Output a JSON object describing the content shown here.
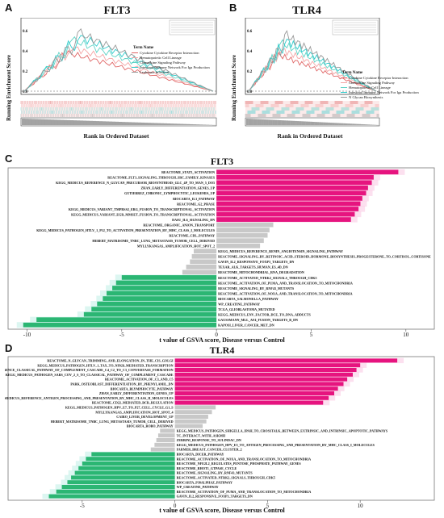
{
  "panelA": {
    "letter": "A",
    "title": "FLT3",
    "ylabel": "Running Enrichment Score",
    "xlabel": "Rank in Ordered Dataset",
    "yticks": [
      "0.6",
      "0.4",
      "0.2",
      "0.0"
    ],
    "legend_title": "Term Name",
    "legend": [
      {
        "name": "Cytokine Cytokine Receptor Interaction",
        "color": "#e06666"
      },
      {
        "name": "Hematopoietic Cell Lineage",
        "color": "#f4a6a6"
      },
      {
        "name": "Chemokine Signaling Pathway",
        "color": "#5fd3c6"
      },
      {
        "name": "Intestinal Immune Network For Iga Production",
        "color": "#33cccc"
      },
      {
        "name": "Leukemia Infection",
        "color": "#999999"
      }
    ],
    "curves": [
      {
        "color": "#e06666",
        "peak": 0.42
      },
      {
        "color": "#f4a6a6",
        "peak": 0.48
      },
      {
        "color": "#5fd3c6",
        "peak": 0.55
      },
      {
        "color": "#33cccc",
        "peak": 0.6
      },
      {
        "color": "#999999",
        "peak": 0.62
      }
    ]
  },
  "panelB": {
    "letter": "B",
    "title": "TLR4",
    "ylabel": "Running Enrichment Score",
    "xlabel": "Rank in Ordered Dataset",
    "yticks": [
      "0.6",
      "0.4",
      "0.2",
      "0.0"
    ],
    "legend_title": "Term Name",
    "legend": [
      {
        "name": "Cytokine Cytokine Receptor Interaction",
        "color": "#e06666"
      },
      {
        "name": "Chemokine Signaling Pathway",
        "color": "#f4a6a6"
      },
      {
        "name": "Hematopoietic Cell Lineage",
        "color": "#5fd3c6"
      },
      {
        "name": "Intestinal Immune Network For Iga Production",
        "color": "#33cccc"
      },
      {
        "name": "N Glycan Biosynthesis",
        "color": "#999999"
      }
    ],
    "curves": [
      {
        "color": "#e06666",
        "peak": 0.4
      },
      {
        "color": "#f4a6a6",
        "peak": 0.46
      },
      {
        "color": "#5fd3c6",
        "peak": 0.52
      },
      {
        "color": "#33cccc",
        "peak": 0.56
      },
      {
        "color": "#999999",
        "peak": 0.6
      }
    ]
  },
  "panelC": {
    "letter": "C",
    "title": "FLT3",
    "xlabel": "t value of GSVA score, Disease versus Control",
    "xticks": [
      -10,
      -5,
      0,
      5,
      10
    ],
    "xlim": [
      -11,
      11.5
    ],
    "bars": [
      {
        "label": "REACTOME_STAT5_ACTIVATION",
        "value": 9.6
      },
      {
        "label": "REACTOME_FLT3_SIGNALING_THROUGH_SRC_FAMILY_KINASES",
        "value": 8.3
      },
      {
        "label": "KEGG_MEDICUS_REFERENCE_N_GLYCAN_PRECURSOR_BIOSYNTHESIS_GLC_4P_TO_MAN_5_DO5",
        "value": 8.2
      },
      {
        "label": "ZHAN_EARLY_DIFFERENTIATION_GENES_UP",
        "value": 8.0
      },
      {
        "label": "GUTIERREZ_CHRONIC_LYMPHOCYTIC_LEUKEMIA_UP",
        "value": 7.9
      },
      {
        "label": "BIOCARTA_IL3_PATHWAY",
        "value": 7.7
      },
      {
        "label": "REACTOME_G2_PHASE",
        "value": 7.6
      },
      {
        "label": "KEGG_MEDICUS_VARIANT_TMPRSS2_ERG_FUSION_TO_TRANSCRIPTIONAL_ACTIVATION",
        "value": 7.5
      },
      {
        "label": "KEGG_MEDICUS_VARIANT_EGR_MMSET_FUSION_TO_TRANSCRIPTIONAL_ACTIVATION",
        "value": 7.3
      },
      {
        "label": "DASU_IL6_SIGNALING_DN",
        "value": 7.1
      },
      {
        "label": "REACTOME_ORGANIC_ANION_TRANSPORT",
        "value": 3.0
      },
      {
        "label": "KEGG_MEDICUS_PATHOGEN_HTLV_1_P12_TO_ACTIVATION_PRESENTATION_BY_MHC_CLASS_I_MOLECULES",
        "value": 2.8
      },
      {
        "label": "REACTOME_CDL_PATHWAY",
        "value": 2.7
      },
      {
        "label": "HEBERT_MATRISOME_TNBC_LUNG_METASTASIS_TUMOR_CELL_DERIVED",
        "value": 2.5
      },
      {
        "label": "MYLLYKANGAS_AMPLIFICATION_HOT_SPOT_2",
        "value": 2.3
      },
      {
        "label": "KEGG_MEDICUS_REFERENCE_RENIN_ANGIOTENSIN_SIGNALING_PATHWAY",
        "value": -1.2
      },
      {
        "label": "REACTOME_SIGNALING_BY_RETINOIC_ACID_STEROID_HORMONE_BIOSYNTHESIS_PROGESTERONE_TO_CORTISOL_CORTISONE",
        "value": -1.3
      },
      {
        "label": "GAVIN_IL2_RESPONSIVE_FOXP3_TARGETS_DN",
        "value": -1.4
      },
      {
        "label": "TEXAR_ALK_TARGETS_HUMAN_ES_4D_DN",
        "value": -1.6
      },
      {
        "label": "REACTOME_MITOCHONDRIAL_RNA_DEGRADATION",
        "value": -1.8
      },
      {
        "label": "REACTOME_ACTIVATED_NTRK2_SIGNALS_THROUGH_CDK5",
        "value": -5.0
      },
      {
        "label": "REACTOME_ACTIVATION_OF_PUMA_AND_TRANSLOCATION_TO_MITOCHONDRIA",
        "value": -5.3
      },
      {
        "label": "REACTOME_SIGNALING_BY_RNF43_MUTANTS",
        "value": -5.5
      },
      {
        "label": "REACTOME_ACTIVATION_OF_NOXA_AND_TRANSLOCATION_TO_MITOCHONDRIA",
        "value": -5.8
      },
      {
        "label": "BIOCARTA_SALMONELLA_PATHWAY",
        "value": -6.0
      },
      {
        "label": "WP_CREATINE_PATHWAY",
        "value": -6.3
      },
      {
        "label": "TCGA_GLIOBLASTOMA_MUTATED",
        "value": -6.6
      },
      {
        "label": "KEGG_MEDICUS_ENV_FACTOR_DCE_TO_DNA_ADDUCTS",
        "value": -7.0
      },
      {
        "label": "GAUSSMANN_MLL_AF4_FUSION_TARGETS_B_DN",
        "value": -9.5
      },
      {
        "label": "KAPOSI_LIVER_CANCER_MET_DN",
        "value": -10.2
      }
    ]
  },
  "panelD": {
    "letter": "D",
    "title": "TLR4",
    "xlabel": "t value of GSVA score, Disease versus Control",
    "xticks": [
      -5,
      0,
      5,
      10
    ],
    "xlim": [
      -9,
      14
    ],
    "bars": [
      {
        "label": "REACTOME_N_GLYCAN_TRIMMING_AND_ELONGATION_IN_THE_CIS_GOLGI",
        "value": 12.0
      },
      {
        "label": "KEGG_MEDICUS_PATHOGEN_HTLV_1_TAX_TO_NFKB_MEDIATED_TRANSCRIPTION",
        "value": 10.0
      },
      {
        "label": "KEGG_MEDICUS_REFERENCE_CLASSICAL_PATHWAY_OF_COMPLEMENT_CASCADE_C4_C2_TO_C3_CONVERTASE_FORMATION",
        "value": 9.8
      },
      {
        "label": "KEGG_MEDICUS_PATHOGEN_SARS_COV_2_S_TO_CLASSICAL_PATHWAY_OF_COMPLEMENT_CASCADE",
        "value": 9.6
      },
      {
        "label": "REACTOME_ACTIVATION_OF_C3_AND_C5",
        "value": 9.3
      },
      {
        "label": "PARK_OSTEOBLAST_DIFFERENTIATION_BY_PHENYLAMIL_DN",
        "value": 9.1
      },
      {
        "label": "BIOCARTA_BLYMPHOCYTE_PATHWAY",
        "value": 8.8
      },
      {
        "label": "ZHAN_EARLY_DIFFERENTIATION_GENES_UP",
        "value": 8.6
      },
      {
        "label": "KEGG_MEDICUS_REFERENCE_ANTIGEN_PROCESSING_AND_PRESENTATION_BY_MHC_CLASS_II_MOLECULES",
        "value": 8.3
      },
      {
        "label": "REACTOME_CD22_MEDIATED_BCR_REGULATION",
        "value": 8.0
      },
      {
        "label": "KEGG_MEDICUS_PATHOGEN_HPV_E7_TO_P27_CELL_CYCLE_G1_S",
        "value": 2.2
      },
      {
        "label": "MYLLYKANGAS_AMPLIFICATION_HOT_SPOT_4",
        "value": 2.0
      },
      {
        "label": "CAIRO_LIVER_DEVELOPMENT_UP",
        "value": 1.8
      },
      {
        "label": "HEBERT_MATRISOME_TNBC_LUNG_METASTASIS_TUMOR_CELL_DERIVED",
        "value": 1.7
      },
      {
        "label": "BIOCARTA_ROBO_PATHWAY",
        "value": 1.5
      },
      {
        "label": "KEGG_MEDICUS_PATHOGEN_SHIGELLA_IPAH_TO_CROSSTALK_BETWEEN_EXTRINSIC_AND_INTRINSIC_APOPTOTIC_PATHWAYS",
        "value": -0.8
      },
      {
        "label": "TC_INTERACT_WITH_ASKMH",
        "value": -0.9
      },
      {
        "label": "ZERBINI_RESPONSE_TO_SULINDAC_DN",
        "value": -1.0
      },
      {
        "label": "KEGG_MEDICUS_PATHOGEN_HPV_E5_TO_ANTIGEN_PROCESSING_AND_PRESENTATION_BY_MHC_CLASS_I_MOLECULES",
        "value": -1.1
      },
      {
        "label": "FARMER_BREAST_CANCER_CLUSTER_2",
        "value": -1.3
      },
      {
        "label": "BIOCARTA_DICER_PATHWAY",
        "value": -4.5
      },
      {
        "label": "REACTOME_ACTIVATION_OF_NOXA_AND_TRANSLOCATION_TO_MITOCHONDRIA",
        "value": -4.8
      },
      {
        "label": "REACTOME_NFE2L2_REGULATES_PENTOSE_PHOSPHATE_PATHWAY_GENES",
        "value": -5.0
      },
      {
        "label": "REACTOME_RHOT1_GTPASE_CYCLE",
        "value": -5.2
      },
      {
        "label": "REACTOME_SIGNALING_BY_RNF43_MUTANTS",
        "value": -5.4
      },
      {
        "label": "REACTOME_ACTIVATED_NTRK2_SIGNALS_THROUGH_CDK5",
        "value": -5.6
      },
      {
        "label": "BIOCARTA_P38ALPHAZ_PATHWAY",
        "value": -5.8
      },
      {
        "label": "WP_CREATINE_PATHWAY",
        "value": -6.1
      },
      {
        "label": "REACTOME_ACTIVATION_OF_PUMA_AND_TRANSLOCATION_TO_MITOCHONDRIA",
        "value": -6.4
      },
      {
        "label": "GAVIN_IL2_RESPONSIVE_FOXP3_TARGETS_DN",
        "value": -6.8
      }
    ]
  }
}
